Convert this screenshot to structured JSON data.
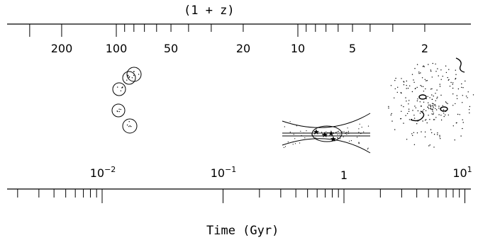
{
  "top_axis": {
    "title": "(1 + z)",
    "tick_labels": [
      "200",
      "100",
      "50",
      "20",
      "10",
      "5",
      "2"
    ]
  },
  "bottom_axis": {
    "title": "Time (Gyr)",
    "tick_labels": [
      {
        "base": "10",
        "exp": "−2"
      },
      {
        "base": "10",
        "exp": "−1"
      },
      {
        "base": "1",
        "exp": ""
      },
      {
        "base": "10",
        "exp": "1"
      }
    ]
  },
  "illustrations": [
    {
      "name": "merging-subclumps",
      "description_icon": "small-circles-icon"
    },
    {
      "name": "forming-bulge-disk",
      "description_icon": "bulge-disk-icon"
    },
    {
      "name": "present-day-cluster",
      "description_icon": "galaxy-cluster-icon"
    }
  ],
  "colors": {
    "ink": "#000000",
    "background": "#ffffff"
  }
}
